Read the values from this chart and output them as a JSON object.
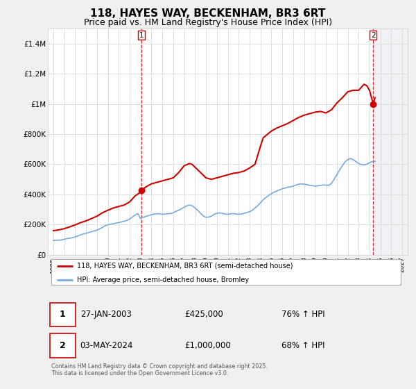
{
  "title": "118, HAYES WAY, BECKENHAM, BR3 6RT",
  "subtitle": "Price paid vs. HM Land Registry's House Price Index (HPI)",
  "title_fontsize": 11,
  "subtitle_fontsize": 9,
  "bg_color": "#f0f0f0",
  "plot_bg_color": "#ffffff",
  "red_color": "#cc0000",
  "blue_color": "#77aadd",
  "grid_color": "#dddddd",
  "ylim": [
    0,
    1500000
  ],
  "yticks": [
    0,
    200000,
    400000,
    600000,
    800000,
    1000000,
    1200000,
    1400000
  ],
  "ytick_labels": [
    "£0",
    "£200K",
    "£400K",
    "£600K",
    "£800K",
    "£1M",
    "£1.2M",
    "£1.4M"
  ],
  "xmin": 1994.5,
  "xmax": 2027.5,
  "sale1_x": 2003.07,
  "sale1_y": 425000,
  "sale2_x": 2024.34,
  "sale2_y": 1000000,
  "legend_line1": "118, HAYES WAY, BECKENHAM, BR3 6RT (semi-detached house)",
  "legend_line2": "HPI: Average price, semi-detached house, Bromley",
  "annotation1_num": "1",
  "annotation1_date": "27-JAN-2003",
  "annotation1_price": "£425,000",
  "annotation1_hpi": "76% ↑ HPI",
  "annotation2_num": "2",
  "annotation2_date": "03-MAY-2024",
  "annotation2_price": "£1,000,000",
  "annotation2_hpi": "68% ↑ HPI",
  "footer": "Contains HM Land Registry data © Crown copyright and database right 2025.\nThis data is licensed under the Open Government Licence v3.0.",
  "hpi_years": [
    1995.0,
    1995.25,
    1995.5,
    1995.75,
    1996.0,
    1996.25,
    1996.5,
    1996.75,
    1997.0,
    1997.25,
    1997.5,
    1997.75,
    1998.0,
    1998.25,
    1998.5,
    1998.75,
    1999.0,
    1999.25,
    1999.5,
    1999.75,
    2000.0,
    2000.25,
    2000.5,
    2000.75,
    2001.0,
    2001.25,
    2001.5,
    2001.75,
    2002.0,
    2002.25,
    2002.5,
    2002.75,
    2003.0,
    2003.25,
    2003.5,
    2003.75,
    2004.0,
    2004.25,
    2004.5,
    2004.75,
    2005.0,
    2005.25,
    2005.5,
    2005.75,
    2006.0,
    2006.25,
    2006.5,
    2006.75,
    2007.0,
    2007.25,
    2007.5,
    2007.75,
    2008.0,
    2008.25,
    2008.5,
    2008.75,
    2009.0,
    2009.25,
    2009.5,
    2009.75,
    2010.0,
    2010.25,
    2010.5,
    2010.75,
    2011.0,
    2011.25,
    2011.5,
    2011.75,
    2012.0,
    2012.25,
    2012.5,
    2012.75,
    2013.0,
    2013.25,
    2013.5,
    2013.75,
    2014.0,
    2014.25,
    2014.5,
    2014.75,
    2015.0,
    2015.25,
    2015.5,
    2015.75,
    2016.0,
    2016.25,
    2016.5,
    2016.75,
    2017.0,
    2017.25,
    2017.5,
    2017.75,
    2018.0,
    2018.25,
    2018.5,
    2018.75,
    2019.0,
    2019.25,
    2019.5,
    2019.75,
    2020.0,
    2020.25,
    2020.5,
    2020.75,
    2021.0,
    2021.25,
    2021.5,
    2021.75,
    2022.0,
    2022.25,
    2022.5,
    2022.75,
    2023.0,
    2023.25,
    2023.5,
    2023.75,
    2024.0,
    2024.25,
    2024.5
  ],
  "hpi_values": [
    95000,
    96000,
    97000,
    98000,
    103000,
    107000,
    110000,
    113000,
    118000,
    125000,
    132000,
    138000,
    142000,
    148000,
    153000,
    158000,
    163000,
    172000,
    181000,
    192000,
    199000,
    203000,
    206000,
    210000,
    213000,
    218000,
    222000,
    228000,
    237000,
    250000,
    263000,
    273000,
    240000,
    248000,
    255000,
    260000,
    265000,
    270000,
    272000,
    272000,
    268000,
    270000,
    272000,
    273000,
    278000,
    288000,
    295000,
    305000,
    315000,
    325000,
    330000,
    325000,
    310000,
    295000,
    275000,
    258000,
    248000,
    250000,
    256000,
    268000,
    275000,
    278000,
    275000,
    270000,
    268000,
    272000,
    273000,
    270000,
    268000,
    270000,
    275000,
    280000,
    285000,
    295000,
    310000,
    325000,
    345000,
    365000,
    380000,
    393000,
    405000,
    415000,
    423000,
    430000,
    438000,
    442000,
    448000,
    450000,
    455000,
    462000,
    468000,
    470000,
    468000,
    465000,
    460000,
    458000,
    455000,
    458000,
    460000,
    463000,
    462000,
    460000,
    472000,
    500000,
    530000,
    560000,
    590000,
    615000,
    630000,
    638000,
    630000,
    618000,
    605000,
    598000,
    595000,
    600000,
    610000,
    618000,
    620000
  ],
  "red_years": [
    1995.0,
    1995.5,
    1996.0,
    1996.5,
    1997.0,
    1997.5,
    1998.0,
    1998.5,
    1999.0,
    1999.5,
    2000.0,
    2000.5,
    2001.0,
    2001.5,
    2002.0,
    2002.5,
    2003.0,
    2003.07,
    2003.5,
    2004.0,
    2004.5,
    2005.0,
    2005.5,
    2006.0,
    2006.5,
    2007.0,
    2007.5,
    2007.75,
    2008.0,
    2008.5,
    2009.0,
    2009.5,
    2010.0,
    2010.5,
    2011.0,
    2011.5,
    2012.0,
    2012.5,
    2013.0,
    2013.5,
    2014.0,
    2014.25,
    2014.5,
    2015.0,
    2015.5,
    2016.0,
    2016.5,
    2017.0,
    2017.5,
    2018.0,
    2018.5,
    2019.0,
    2019.5,
    2020.0,
    2020.5,
    2021.0,
    2021.5,
    2022.0,
    2022.5,
    2023.0,
    2023.25,
    2023.5,
    2023.75,
    2024.0,
    2024.34,
    2024.5
  ],
  "red_values": [
    160000,
    165000,
    173000,
    185000,
    198000,
    213000,
    225000,
    240000,
    256000,
    278000,
    295000,
    310000,
    320000,
    330000,
    350000,
    390000,
    415000,
    425000,
    450000,
    470000,
    480000,
    490000,
    500000,
    510000,
    545000,
    590000,
    605000,
    598000,
    580000,
    545000,
    510000,
    500000,
    510000,
    520000,
    530000,
    540000,
    545000,
    555000,
    575000,
    600000,
    720000,
    775000,
    790000,
    820000,
    840000,
    855000,
    870000,
    890000,
    910000,
    925000,
    935000,
    945000,
    950000,
    940000,
    960000,
    1005000,
    1040000,
    1080000,
    1090000,
    1090000,
    1110000,
    1130000,
    1120000,
    1090000,
    1000000,
    1040000
  ]
}
